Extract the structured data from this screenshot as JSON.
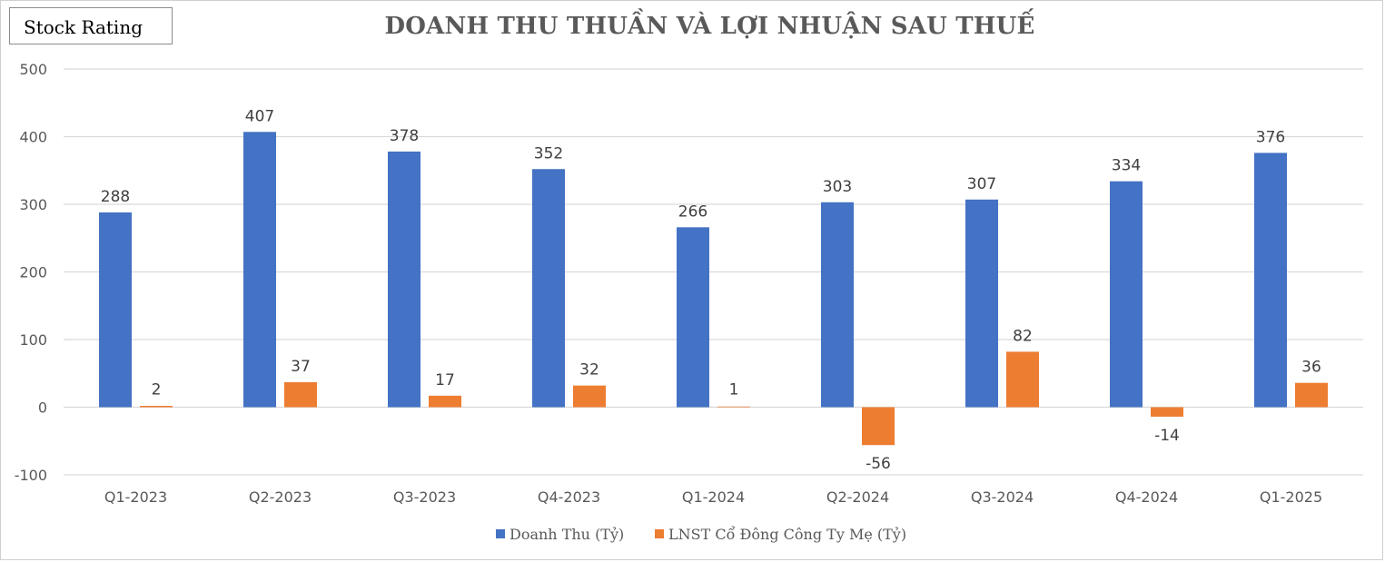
{
  "stamp": {
    "label": "Stock Rating"
  },
  "chart_data": {
    "type": "bar",
    "title": "DOANH THU THUẦN VÀ LỢI NHUẬN SAU THUẾ",
    "categories": [
      "Q1-2023",
      "Q2-2023",
      "Q3-2023",
      "Q4-2023",
      "Q1-2024",
      "Q2-2024",
      "Q3-2024",
      "Q4-2024",
      "Q1-2025"
    ],
    "series": [
      {
        "name": "Doanh Thu (Tỷ)",
        "values": [
          288,
          407,
          378,
          352,
          266,
          303,
          307,
          334,
          376
        ],
        "color": "#4472c4"
      },
      {
        "name": "LNST Cổ Đông Công Ty Mẹ (Tỷ)",
        "values": [
          2,
          37,
          17,
          32,
          1,
          -56,
          82,
          -14,
          36
        ],
        "color": "#ed7d31"
      }
    ],
    "ylim": [
      -100,
      500
    ],
    "yticks": [
      -100,
      0,
      100,
      200,
      300,
      400,
      500
    ],
    "grid": true,
    "legend": "bottom-center"
  }
}
